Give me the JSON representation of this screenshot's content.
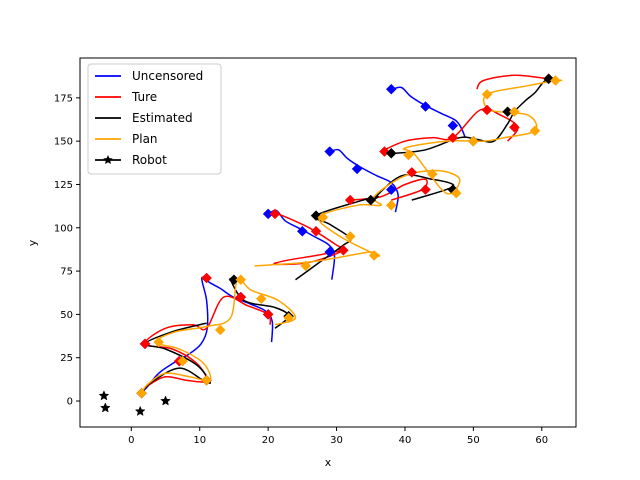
{
  "chart_data": {
    "type": "line",
    "xlabel": "x",
    "ylabel": "y",
    "xlim": [
      -7.5,
      65
    ],
    "ylim": [
      -15,
      198
    ],
    "x_ticks": [
      0,
      10,
      20,
      30,
      40,
      50,
      60
    ],
    "y_ticks": [
      0,
      25,
      50,
      75,
      100,
      125,
      150,
      175
    ],
    "grid": false,
    "legend_position": "top-left",
    "series": [
      {
        "name": "Uncensored",
        "color": "#0000ff",
        "waypoints": [
          [
            2,
            33
          ],
          [
            7,
            23
          ],
          [
            11,
            12
          ],
          [
            11,
            71
          ],
          [
            16,
            60
          ],
          [
            20,
            50
          ],
          [
            20,
            108
          ],
          [
            25,
            98
          ],
          [
            29,
            86
          ],
          [
            29,
            144
          ],
          [
            33,
            134
          ],
          [
            38,
            122
          ],
          [
            38,
            180
          ],
          [
            43,
            170
          ],
          [
            47,
            159
          ]
        ],
        "x": [
          1.5,
          2.3,
          4.0,
          6.2,
          8.4,
          10.2,
          11.1,
          11.0,
          10.3,
          11.6,
          13.0,
          14.9,
          17.4,
          19.6,
          20.6,
          20.5,
          20.1,
          21.2,
          22.5,
          24.4,
          26.7,
          28.9,
          29.7,
          29.3,
          29.1,
          30.3,
          31.6,
          33.5,
          35.9,
          38.0,
          39.0,
          38.6,
          38.2,
          39.5,
          40.8,
          42.8,
          45.3,
          47.4,
          48.3,
          48.8,
          50.0
        ],
        "y": [
          5,
          8,
          16,
          22,
          27,
          33,
          42,
          58,
          71,
          68,
          65,
          60,
          56,
          52,
          46,
          34,
          108,
          110,
          104,
          100,
          95,
          90,
          84,
          70,
          144,
          145,
          140,
          135,
          130,
          126,
          119,
          109,
          180,
          181,
          176,
          171,
          166,
          162,
          157,
          152,
          188
        ]
      },
      {
        "name": "Ture",
        "color": "#ff0000",
        "waypoints": [
          [
            2,
            33
          ],
          [
            7,
            23
          ],
          [
            11,
            12
          ],
          [
            11,
            71
          ],
          [
            16,
            60
          ],
          [
            20,
            50
          ],
          [
            21,
            108
          ],
          [
            27,
            98
          ],
          [
            31,
            87
          ],
          [
            32,
            116
          ],
          [
            37,
            144
          ],
          [
            41,
            132
          ],
          [
            43,
            122
          ],
          [
            47,
            152
          ],
          [
            52,
            168
          ],
          [
            56,
            158
          ],
          [
            61,
            186
          ]
        ],
        "x": [
          1.5,
          2.5,
          5.0,
          8.0,
          10.5,
          11.2,
          9.5,
          6.0,
          2.0,
          5.0,
          9.0,
          11.0,
          13.5,
          17.0,
          20.0,
          20.3,
          21.5,
          26.0,
          30.0,
          31.0,
          26.0,
          21.0,
          22.5,
          27.0,
          31.0,
          32.0,
          36.5,
          40.0,
          43.0,
          42.5,
          38.0,
          36.5,
          40.0,
          44.0,
          47.0,
          51.0,
          54.0,
          56.5,
          55.0,
          50.5,
          51.5,
          56.0,
          61.0,
          62.0
        ],
        "y": [
          5,
          9,
          14,
          12,
          11,
          12,
          22,
          30,
          33,
          42,
          44,
          42,
          60,
          55,
          50,
          44,
          108,
          100,
          90,
          87,
          80,
          79,
          81,
          84,
          87,
          116,
          118,
          125,
          128,
          122,
          116,
          144,
          150,
          152,
          152,
          168,
          165,
          158,
          150,
          180,
          185,
          188,
          186,
          186
        ]
      },
      {
        "name": "Estimated",
        "color": "#000000",
        "waypoints": [
          [
            1.5,
            4.5
          ],
          [
            15,
            70
          ],
          [
            23,
            49
          ],
          [
            27,
            107
          ],
          [
            35,
            116
          ],
          [
            38,
            143
          ],
          [
            47,
            122
          ],
          [
            50,
            150
          ],
          [
            55,
            167
          ],
          [
            61,
            186
          ]
        ],
        "x": [
          1.5,
          3.0,
          7.0,
          10.5,
          11.5,
          9.5,
          5.0,
          2.0,
          6.0,
          11.0,
          15.0,
          14.5,
          16.5,
          21.0,
          23.0,
          21.0,
          24.0,
          27.5,
          31.0,
          32.0,
          29.0,
          27.0,
          33.0,
          36.0,
          35.5,
          39.5,
          44.0,
          47.0,
          46.0,
          41.0,
          38.5,
          43.0,
          48.0,
          50.5,
          53.0,
          55.0,
          56.0,
          57.5,
          59.0,
          60.0,
          61.0
        ],
        "y": [
          5,
          11,
          19,
          12,
          11,
          21,
          30,
          33,
          40,
          45,
          69,
          70,
          58,
          54,
          49,
          42,
          70,
          80,
          90,
          94,
          102,
          107,
          115,
          118,
          117,
          130,
          128,
          125,
          122,
          116,
          143,
          145,
          152,
          151,
          150,
          160,
          167,
          173,
          178,
          183,
          187
        ]
      },
      {
        "name": "Plan",
        "color": "#ffa500",
        "waypoints": [
          [
            1.5,
            4.5
          ],
          [
            4,
            34
          ],
          [
            7.5,
            23
          ],
          [
            11,
            12
          ],
          [
            13,
            41
          ],
          [
            16,
            70
          ],
          [
            19,
            59
          ],
          [
            23,
            48
          ],
          [
            25.5,
            78
          ],
          [
            28,
            106
          ],
          [
            32,
            95
          ],
          [
            35.5,
            84
          ],
          [
            38,
            113
          ],
          [
            40.5,
            142
          ],
          [
            44,
            131
          ],
          [
            47.5,
            120
          ],
          [
            50,
            150
          ],
          [
            52,
            177
          ],
          [
            56,
            167
          ],
          [
            59,
            156
          ],
          [
            62,
            185
          ]
        ],
        "x": [
          1.5,
          2.5,
          5.0,
          8.5,
          11.5,
          10.5,
          7.0,
          3.5,
          6.5,
          11.0,
          14.5,
          15.5,
          17.5,
          21.5,
          24.0,
          21.0,
          18.0,
          25.5,
          30.5,
          35.0,
          36.0,
          30.5,
          27.5,
          33.0,
          36.5,
          35.5,
          40.0,
          45.0,
          48.0,
          46.0,
          41.5,
          40.0,
          46.0,
          51.5,
          54.5,
          59.0,
          58.0,
          52.5,
          52.0,
          58.0,
          62.0,
          63.0
        ],
        "y": [
          5,
          10,
          16,
          14,
          12,
          22,
          30,
          34,
          40,
          43,
          48,
          70,
          64,
          58,
          48,
          44,
          78,
          80,
          83,
          86,
          84,
          95,
          106,
          113,
          113,
          118,
          130,
          133,
          128,
          120,
          142,
          146,
          150,
          150,
          152,
          156,
          165,
          168,
          177,
          182,
          185,
          185
        ]
      },
      {
        "name": "Robot",
        "color": "#000000",
        "marker": "star",
        "x": [
          -4,
          -3.8,
          1.3,
          5
        ],
        "y": [
          3,
          -4,
          -6,
          0
        ]
      }
    ],
    "legend": [
      "Uncensored",
      "Ture",
      "Estimated",
      "Plan",
      "Robot"
    ]
  }
}
